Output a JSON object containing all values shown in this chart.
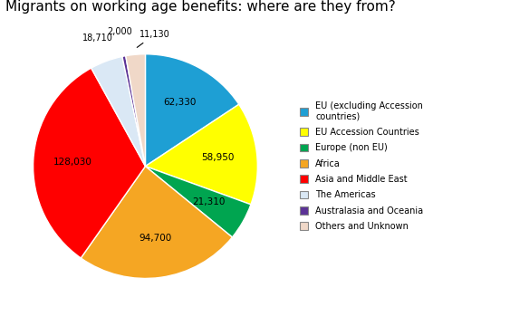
{
  "title": "Migrants on working age benefits: where are they from?",
  "values": [
    62330,
    58950,
    21310,
    94700,
    128030,
    18710,
    2000,
    11130
  ],
  "colors": [
    "#1E9FD4",
    "#FFFF00",
    "#00A550",
    "#F5A623",
    "#FF0000",
    "#DAE8F5",
    "#5B3296",
    "#F0D8C8"
  ],
  "autopct_labels": [
    "62,330",
    "58,950",
    "21,310",
    "94,700",
    "128,030",
    "18,710",
    "2,000",
    "11,130"
  ],
  "title_fontsize": 11,
  "legend_labels": [
    "EU (excluding Accession\ncountries)",
    "EU Accession Countries",
    "Europe (non EU)",
    "Africa",
    "Asia and Middle East",
    "The Americas",
    "Australasia and Oceania",
    "Others and Unknown"
  ],
  "legend_colors": [
    "#1E9FD4",
    "#FFFF00",
    "#00A550",
    "#F5A623",
    "#FF0000",
    "#DAE8F5",
    "#5B3296",
    "#F0D8C8"
  ]
}
